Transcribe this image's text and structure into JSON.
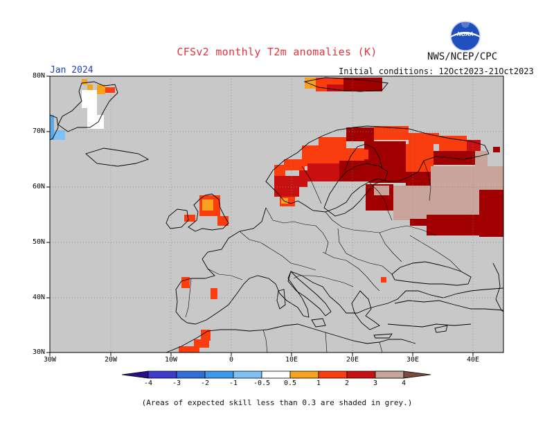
{
  "header": {
    "title": "CFSv2 monthly T2m anomalies (K)",
    "title_color": "#e8323c",
    "month": "Jan 2024",
    "agency": "NWS/NCEP/CPC",
    "initial_conditions": "Initial conditions: 12Oct2023-21Oct2023"
  },
  "logo": {
    "icon": "noaa-logo",
    "text": "NOAA"
  },
  "axes": {
    "lon_labels": [
      "30W",
      "20W",
      "10W",
      "0",
      "10E",
      "20E",
      "30E",
      "40E"
    ],
    "lat_labels": [
      "80N",
      "70N",
      "60N",
      "50N",
      "40N",
      "30N"
    ]
  },
  "colorbar": {
    "labels": [
      "-4",
      "-3",
      "-2",
      "-1",
      "-0.5",
      "0.5",
      "1",
      "2",
      "3",
      "4"
    ],
    "colors": [
      "#2a0d8a",
      "#3b3bcc",
      "#2f6fd6",
      "#3c98eb",
      "#7fc1f5",
      "#ffffff",
      "#f7a21e",
      "#fa3d0e",
      "#c81010",
      "#9a0000",
      "#c8a49a",
      "#7a4a3a"
    ]
  },
  "map": {
    "background": "#c8c8c8",
    "skill_mask_color": "#c8c8c8",
    "anomaly_colors": {
      "light_orange": "#f7a21e",
      "orange_red": "#fa3d0e",
      "dark_red": "#a00000",
      "pinkish_brown": "#c8a49a",
      "white": "#ffffff",
      "light_blue": "#5ea8e8"
    }
  },
  "footnote": "(Areas of expected skill less than 0.3 are shaded in grey.)"
}
